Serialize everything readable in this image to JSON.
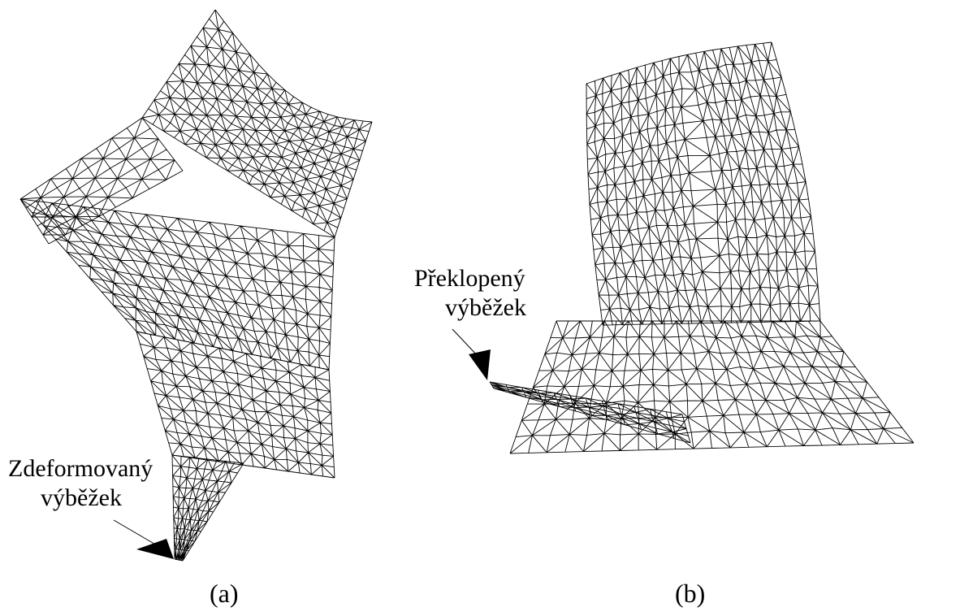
{
  "panels": [
    {
      "caption": "(a)",
      "annotation_lines": [
        "Zdeformovaný",
        "výběžek"
      ]
    },
    {
      "caption": "(b)",
      "annotation_lines": [
        "Překlopený",
        "výběžek"
      ]
    }
  ],
  "colors": {
    "mesh": "#000000",
    "background": "#ffffff"
  }
}
